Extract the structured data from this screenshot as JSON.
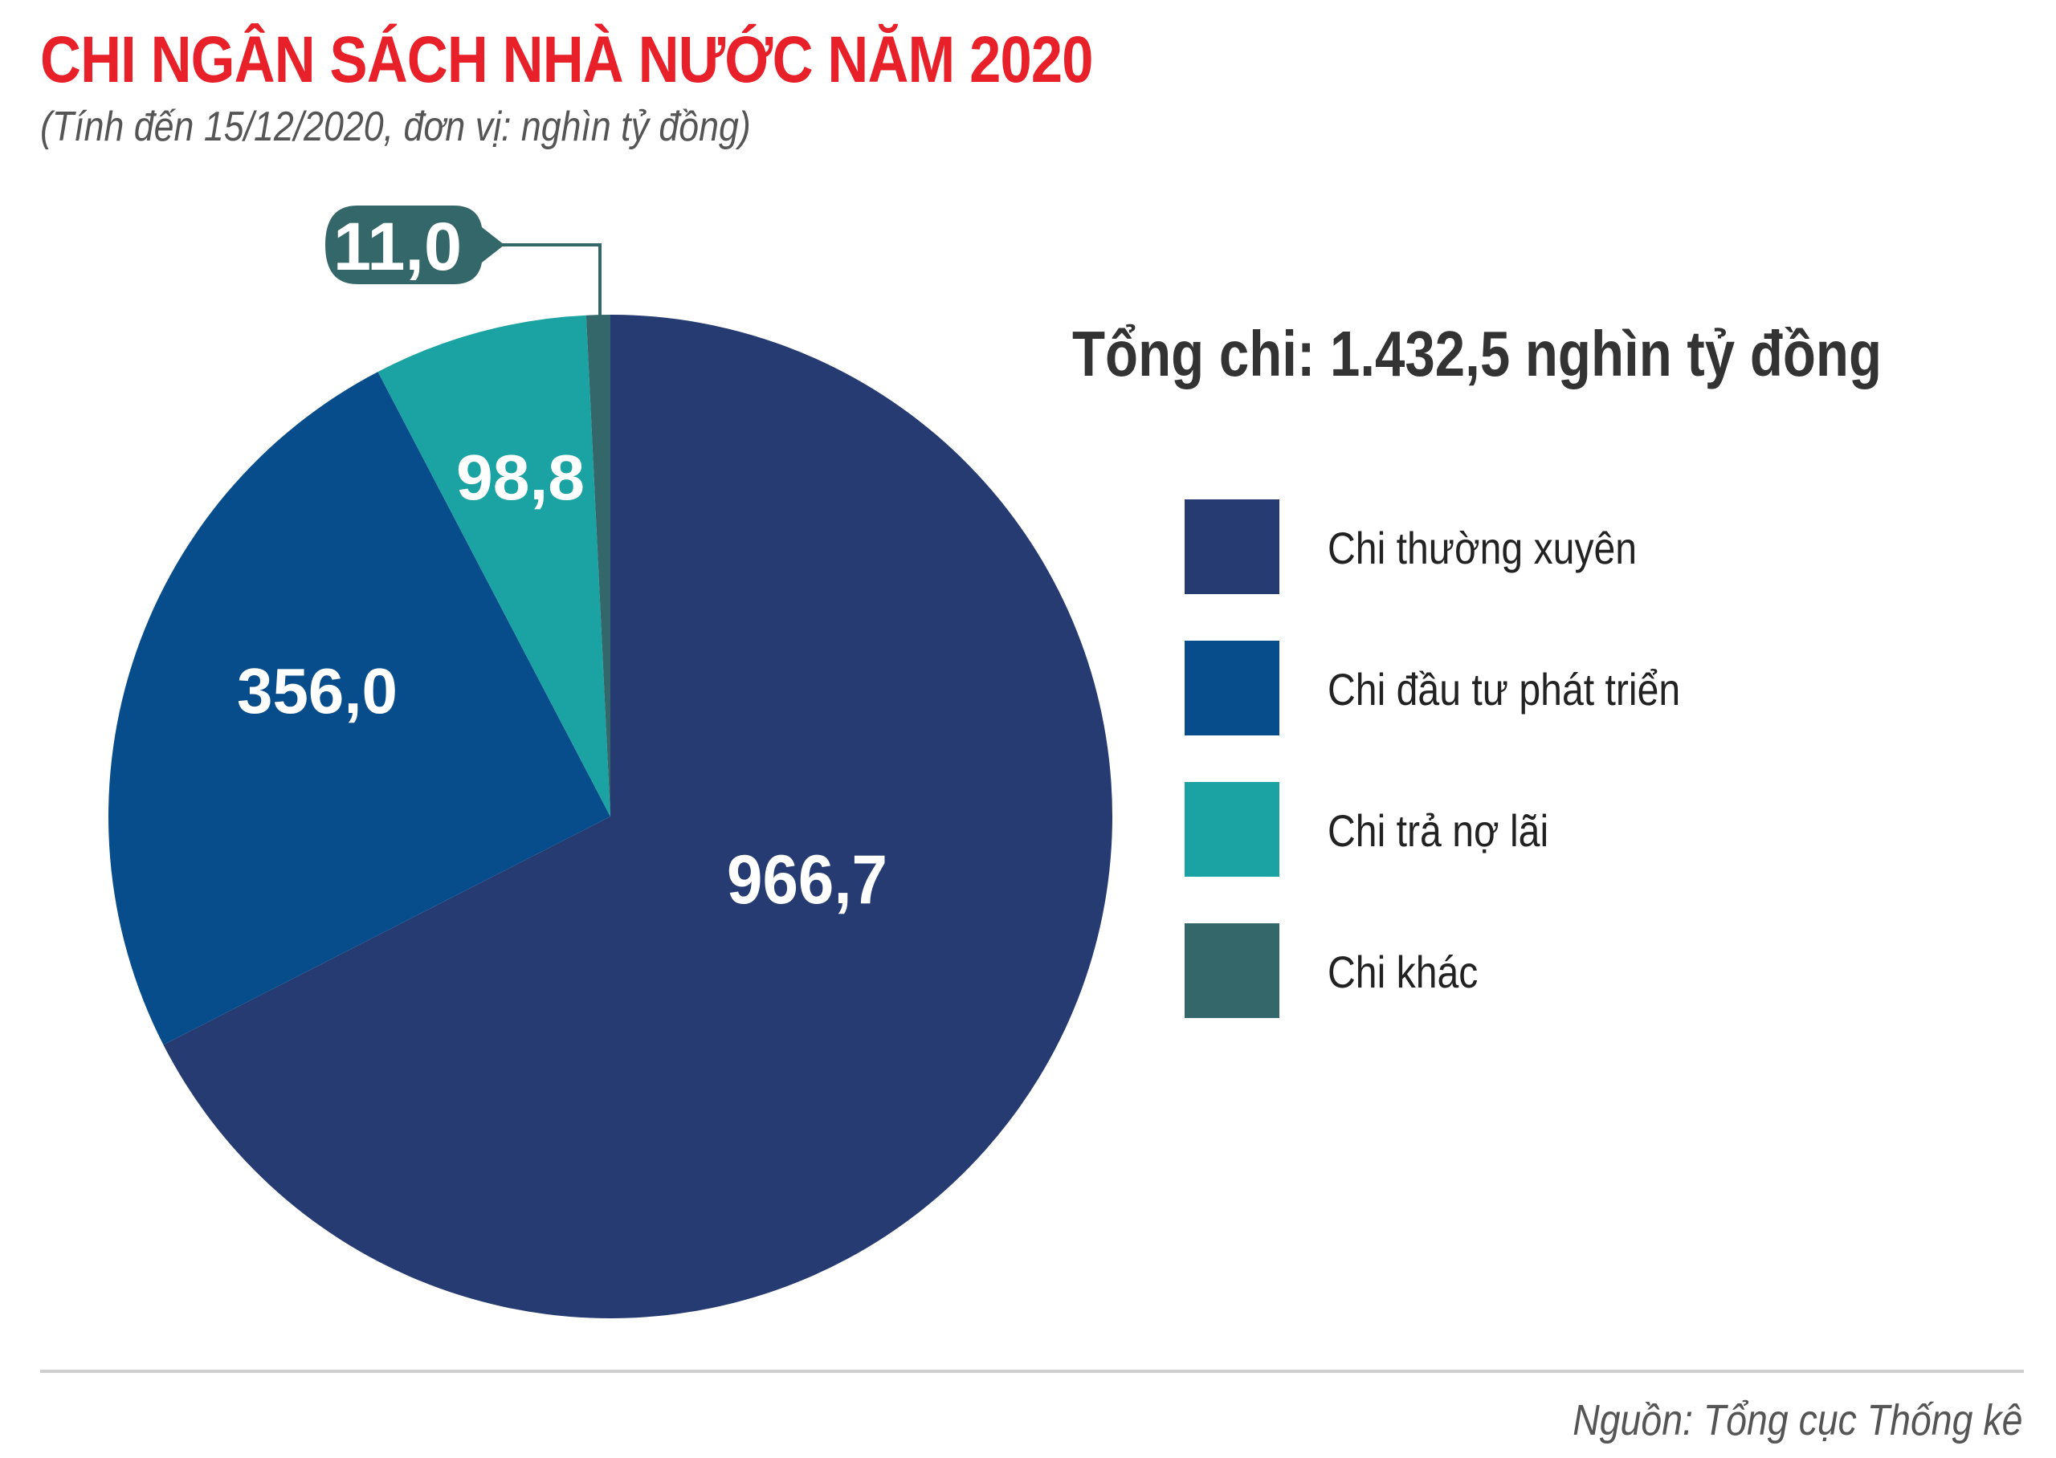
{
  "header": {
    "title": "CHI NGÂN SÁCH NHÀ NƯỚC NĂM 2020",
    "subtitle": "(Tính đến 15/12/2020, đơn vị: nghìn tỷ đồng)"
  },
  "total_label": "Tổng chi: 1.432,5 nghìn tỷ đồng",
  "footer": {
    "source": "Nguồn: Tổng cục Thống kê"
  },
  "chart_data": {
    "type": "pie",
    "title": "CHI NGÂN SÁCH NHÀ NƯỚC NĂM 2020",
    "unit": "nghìn tỷ đồng",
    "total": 1432.5,
    "start": "12 o'clock, clockwise",
    "legend_position": "right",
    "slices": [
      {
        "label": "Chi thường xuyên",
        "value": 966.7,
        "display": "966,7",
        "color": "#263b72"
      },
      {
        "label": "Chi đầu tư phát triển",
        "value": 356.0,
        "display": "356,0",
        "color": "#074d8c"
      },
      {
        "label": "Chi trả nợ lãi",
        "value": 98.8,
        "display": "98,8",
        "color": "#1ba2a3"
      },
      {
        "label": "Chi khác",
        "value": 11.0,
        "display": "11,0",
        "color": "#336769"
      }
    ]
  }
}
